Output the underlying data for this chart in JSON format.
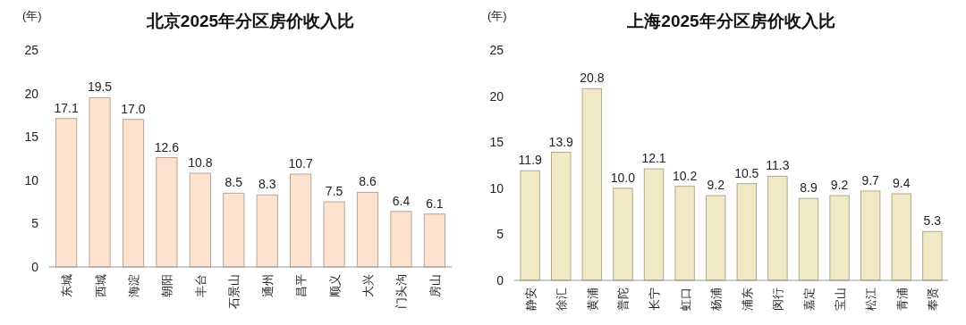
{
  "chart_data": [
    {
      "type": "bar",
      "title": "北京2025年分区房价收入比",
      "ylabel": "(年)",
      "categories": [
        "东城",
        "西城",
        "海淀",
        "朝阳",
        "丰台",
        "石景山",
        "通州",
        "昌平",
        "顺义",
        "大兴",
        "门头沟",
        "房山"
      ],
      "values": [
        17.1,
        19.5,
        17.0,
        12.6,
        10.8,
        8.5,
        8.3,
        10.7,
        7.5,
        8.6,
        6.4,
        6.1
      ],
      "value_labels": [
        "17.1",
        "19.5",
        "17.0",
        "12.6",
        "10.8",
        "8.5",
        "8.3",
        "10.7",
        "7.5",
        "8.6",
        "6.4",
        "6.1"
      ],
      "color": "#fde2cf",
      "ylim": [
        0,
        25
      ],
      "yticks": [
        0,
        5,
        10,
        15,
        20,
        25
      ],
      "grid": false
    },
    {
      "type": "bar",
      "title": "上海2025年分区房价收入比",
      "ylabel": "(年)",
      "categories": [
        "静安",
        "徐汇",
        "黄浦",
        "普陀",
        "长宁",
        "虹口",
        "杨浦",
        "浦东",
        "闵行",
        "嘉定",
        "宝山",
        "松江",
        "青浦",
        "奉贤"
      ],
      "values": [
        11.9,
        13.9,
        20.8,
        10.0,
        12.1,
        10.2,
        9.2,
        10.5,
        11.3,
        8.9,
        9.2,
        9.7,
        9.4,
        5.3
      ],
      "value_labels": [
        "11.9",
        "13.9",
        "20.8",
        "10.0",
        "12.1",
        "10.2",
        "9.2",
        "10.5",
        "11.3",
        "8.9",
        "9.2",
        "9.7",
        "9.4",
        "5.3"
      ],
      "color": "#f1e8c4",
      "ylim": [
        0,
        25
      ],
      "yticks": [
        0,
        5,
        10,
        15,
        20,
        25
      ],
      "grid": false
    }
  ]
}
